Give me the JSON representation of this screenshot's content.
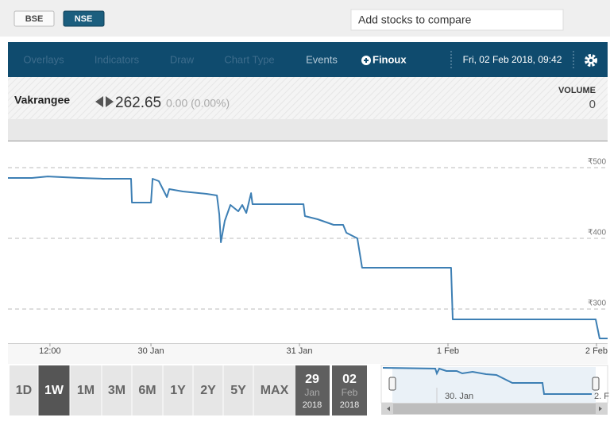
{
  "top_bar": {
    "exchanges": [
      "BSE",
      "NSE"
    ],
    "compare_placeholder": "Add stocks to compare"
  },
  "toolbar": {
    "menu": [
      "Overlays",
      "Indicators",
      "Draw",
      "Chart Type",
      "Events"
    ],
    "logo": "Finoux",
    "datetime": "Fri, 02 Feb 2018, 09:42"
  },
  "quote": {
    "name": "Vakrangee",
    "price": "262.65",
    "change": "0.00 (0.00%)",
    "volume_label": "VOLUME",
    "volume": "0"
  },
  "chart_data": {
    "type": "line",
    "color": "#3d7fb4",
    "grid": true,
    "x": [
      -0.963,
      -0.802,
      -0.695,
      -0.481,
      -0.321,
      -0.134,
      -0.128,
      0,
      0.011,
      0.053,
      0.107,
      0.123,
      0.214,
      0.374,
      0.444,
      0.46,
      0.471,
      0.497,
      0.535,
      0.588,
      0.615,
      0.642,
      0.674,
      0.684,
      1.027,
      1.037,
      1.123,
      1.23,
      1.294,
      1.316,
      1.39,
      1.422,
      1.604,
      2.021,
      2.032,
      2.995,
      3.021,
      3.075
    ],
    "values": [
      485.4,
      485.4,
      487.6,
      485.4,
      484.3,
      484.3,
      450.6,
      450.6,
      484.3,
      480.9,
      458.4,
      469.7,
      466.3,
      462.9,
      460.7,
      433.7,
      394.4,
      424.7,
      447.2,
      438.2,
      447.2,
      436,
      464,
      448.3,
      448.3,
      431.5,
      427,
      419.1,
      419.1,
      407.9,
      400,
      358.4,
      358.4,
      358.4,
      285.4,
      285.4,
      258.4,
      258.4
    ],
    "xlim": [
      -0.963,
      3.075
    ],
    "xticks": [
      {
        "value": -0.68,
        "label": "12:00"
      },
      {
        "value": 0,
        "label": "30 Jan"
      },
      {
        "value": 1,
        "label": "31 Jan"
      },
      {
        "value": 2,
        "label": "1 Feb"
      },
      {
        "value": 3,
        "label": "2 Feb"
      }
    ],
    "ylim": [
      251.7,
      537.1
    ],
    "yticks": [
      {
        "value": 300,
        "label": "₹300"
      },
      {
        "value": 400,
        "label": "₹400"
      },
      {
        "value": 500,
        "label": "₹500"
      }
    ]
  },
  "periods": [
    "1D",
    "1W",
    "1M",
    "3M",
    "6M",
    "1Y",
    "2Y",
    "5Y",
    "MAX"
  ],
  "range": {
    "from": {
      "day": "29",
      "month": "Jan",
      "year": "2018"
    },
    "to": {
      "day": "02",
      "month": "Feb",
      "year": "2018"
    }
  },
  "navigator": {
    "labels": [
      "30. Jan",
      "2. F"
    ]
  }
}
